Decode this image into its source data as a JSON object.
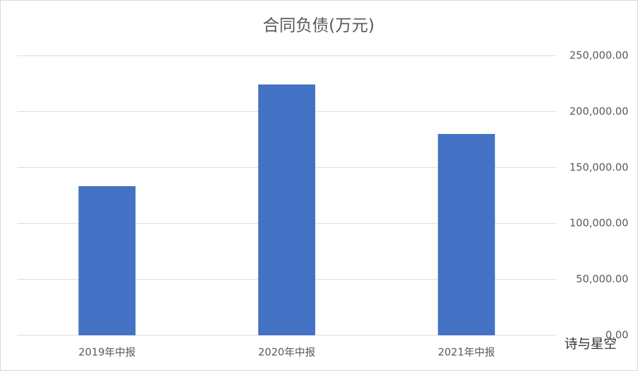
{
  "chart_data": {
    "type": "bar",
    "title": "合同负债(万元)",
    "categories": [
      "2019年中报",
      "2020年中报",
      "2021年中报"
    ],
    "values": [
      133300,
      224200,
      180000
    ],
    "color": "#4472c4",
    "ylim": [
      0,
      250000
    ],
    "yticks": [
      {
        "value": 0,
        "label": "0.00"
      },
      {
        "value": 50000,
        "label": "50,000.00"
      },
      {
        "value": 100000,
        "label": "100,000.00"
      },
      {
        "value": 150000,
        "label": "150,000.00"
      },
      {
        "value": 200000,
        "label": "200,000.00"
      },
      {
        "value": 250000,
        "label": "250,000.00"
      }
    ],
    "y_axis_side": "right",
    "grid": true,
    "watermark": "诗与星空"
  }
}
